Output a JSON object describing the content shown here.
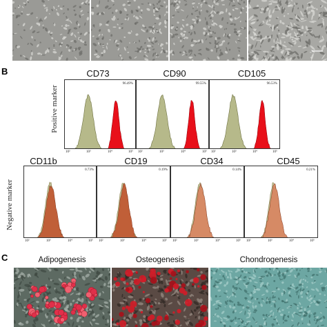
{
  "panels": {
    "a": {
      "scale_bar_label": ""
    },
    "b": {
      "letter": "B",
      "positive_label": "Positive marker",
      "negative_label": "Negative marker",
      "tick_labels": [
        "10²",
        "10³",
        "10⁴",
        "10⁵"
      ],
      "positive": [
        {
          "marker": "CD73",
          "percent": "96.49%"
        },
        {
          "marker": "CD90",
          "percent": "99.55%"
        },
        {
          "marker": "CD105",
          "percent": "96.53%"
        }
      ],
      "negative": [
        {
          "marker": "CD11b",
          "percent": "0.73%"
        },
        {
          "marker": "CD19",
          "percent": "0.19%"
        },
        {
          "marker": "CD34",
          "percent": "0.14%"
        },
        {
          "marker": "CD45",
          "percent": "0.21%"
        }
      ]
    },
    "c": {
      "letter": "C",
      "stains": [
        "Adipogenesis",
        "Osteogenesis",
        "Chondrogenesis"
      ]
    }
  },
  "colors": {
    "isotype_fill": "#b6b98a",
    "positive_fill": "#e8101a",
    "negative_fill": "#c1552e",
    "negative_light_fill": "#d98560",
    "microscope_bg": "#9a9a96",
    "chondro_bg": "#6da7a3"
  }
}
